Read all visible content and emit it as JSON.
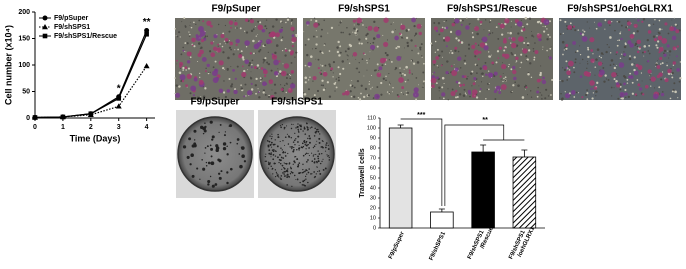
{
  "chart_data": [
    {
      "type": "line",
      "xlabel": "Time (Days)",
      "ylabel": "Cell number (x10⁴)",
      "x": [
        0,
        1,
        2,
        3,
        4
      ],
      "xlim": [
        0,
        4.3
      ],
      "xticks": [
        0,
        1,
        2,
        3,
        4
      ],
      "ylim": [
        0,
        200
      ],
      "yticks": [
        0,
        50,
        100,
        150,
        200
      ],
      "legend": "upper left",
      "series": [
        {
          "name": "F9/pSuper",
          "color": "#000000",
          "marker": "circle",
          "dash": "solid",
          "values": [
            1,
            2,
            8,
            40,
            165
          ]
        },
        {
          "name": "F9/shSPS1",
          "color": "#000000",
          "marker": "triangle",
          "dash": "dotted",
          "values": [
            1,
            2,
            6,
            22,
            98
          ]
        },
        {
          "name": "F9/shSPS1/Rescue",
          "color": "#000000",
          "marker": "square",
          "dash": "solid",
          "values": [
            1,
            2,
            8,
            37,
            158
          ]
        }
      ],
      "annotations": [
        {
          "text": "*",
          "x": 3
        },
        {
          "text": "**",
          "x": 4
        }
      ]
    },
    {
      "type": "bar",
      "ylabel": "Transwell cells",
      "categories": [
        "F9/pSuper",
        "F9/shSPS1",
        "F9/shSPS1\n/Rescue",
        "F9/shSPS1\n/oehGLRX1"
      ],
      "values": [
        100,
        16,
        76,
        71
      ],
      "errors": [
        3,
        3,
        7,
        7
      ],
      "colors": [
        "#e3e3e3",
        "#ffffff",
        "#000000",
        "#ffffff"
      ],
      "patterns": [
        "solid",
        "solid",
        "solid",
        "hatch"
      ],
      "ylim": [
        0,
        110
      ],
      "yticks": [
        0,
        10,
        20,
        30,
        40,
        50,
        60,
        70,
        80,
        90,
        100,
        110
      ],
      "annotations": [
        "***",
        "**"
      ]
    }
  ],
  "micrographs": [
    "F9/pSuper",
    "F9/shSPS1",
    "F9/shSPS1/Rescue",
    "F9/shSPS1/oehGLRX1"
  ],
  "colonies": [
    "F9/pSuper",
    "F9/shSPS1"
  ]
}
